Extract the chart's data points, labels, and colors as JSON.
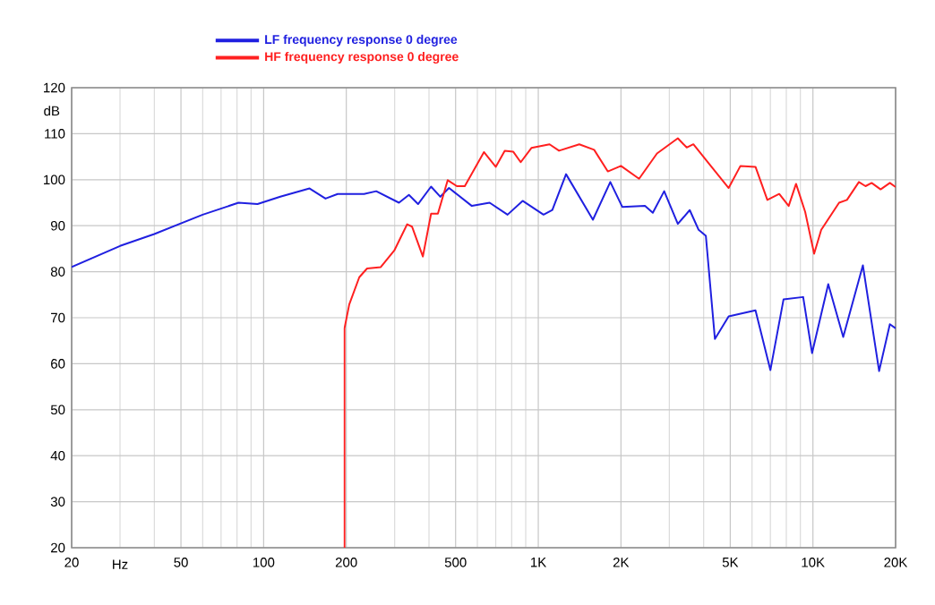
{
  "chart_data": {
    "type": "line",
    "xlabel": "Hz",
    "ylabel": "dB",
    "log": "x",
    "grid": true,
    "legend": "top left",
    "xlim": [
      20,
      20000
    ],
    "ylim": [
      20,
      120
    ],
    "xticks": [
      20,
      50,
      100,
      200,
      500,
      {
        "value": 1000,
        "label": "1K"
      },
      {
        "value": 2000,
        "label": "2K"
      },
      {
        "value": 5000,
        "label": "5K"
      },
      {
        "value": 10000,
        "label": "10K"
      },
      {
        "value": 20000,
        "label": "20K"
      }
    ],
    "yticks": [
      20,
      30,
      40,
      50,
      60,
      70,
      80,
      90,
      100,
      110,
      120
    ],
    "series": [
      {
        "name": "LF frequency response 0 degree",
        "color": "#2020e0",
        "x": [
          20,
          30,
          40,
          60,
          81,
          95,
          115,
          147,
          168,
          186,
          232,
          257,
          311,
          338,
          365,
          407,
          440,
          473,
          573,
          665,
          773,
          877,
          1045,
          1125,
          1262,
          1581,
          1829,
          2022,
          2446,
          2612,
          2873,
          3222,
          3560,
          3836,
          4075,
          4396,
          4933,
          6178,
          7000,
          7818,
          9213,
          9929,
          11370,
          12890,
          15200,
          17420,
          19060,
          20000
        ],
        "values": [
          81,
          85.6,
          88.2,
          92.4,
          95,
          94.7,
          96.3,
          98.1,
          95.9,
          96.9,
          96.9,
          97.5,
          95,
          96.7,
          94.7,
          98.5,
          96.3,
          98.2,
          94.3,
          95,
          92.4,
          95.4,
          92.4,
          93.4,
          101.2,
          91.3,
          99.5,
          94.1,
          94.3,
          92.8,
          97.5,
          90.4,
          93.4,
          89.1,
          87.8,
          65.4,
          70.3,
          71.6,
          58.6,
          74,
          74.5,
          62.3,
          77.3,
          65.8,
          81.4,
          58.4,
          68.6,
          67.7
        ]
      },
      {
        "name": "HF frequency response 0 degree",
        "color": "#ff2020",
        "x": [
          197,
          197,
          205,
          223,
          238,
          267,
          299,
          333,
          347,
          380,
          407,
          431,
          468,
          505,
          540,
          634,
          700,
          755,
          810,
          863,
          944,
          1099,
          1190,
          1410,
          1597,
          1791,
          2000,
          2328,
          2705,
          3222,
          3470,
          3670,
          4247,
          4933,
          5446,
          6178,
          6824,
          7540,
          8160,
          8680,
          9370,
          10100,
          10720,
          12450,
          13300,
          14700,
          15540,
          16360,
          17640,
          19060,
          20000
        ],
        "values": [
          20,
          67.7,
          72.9,
          78.8,
          80.7,
          81,
          84.6,
          90.3,
          89.8,
          83.3,
          92.6,
          92.6,
          99.9,
          98.6,
          98.6,
          106,
          102.8,
          106.3,
          106.1,
          103.8,
          106.9,
          107.7,
          106.3,
          107.7,
          106.5,
          101.8,
          103,
          100.2,
          105.7,
          109,
          107,
          107.7,
          103,
          98.2,
          103,
          102.8,
          95.6,
          96.9,
          94.3,
          99.1,
          93,
          83.9,
          89.1,
          95,
          95.6,
          99.5,
          98.6,
          99.3,
          97.9,
          99.3,
          98.4
        ]
      }
    ]
  }
}
